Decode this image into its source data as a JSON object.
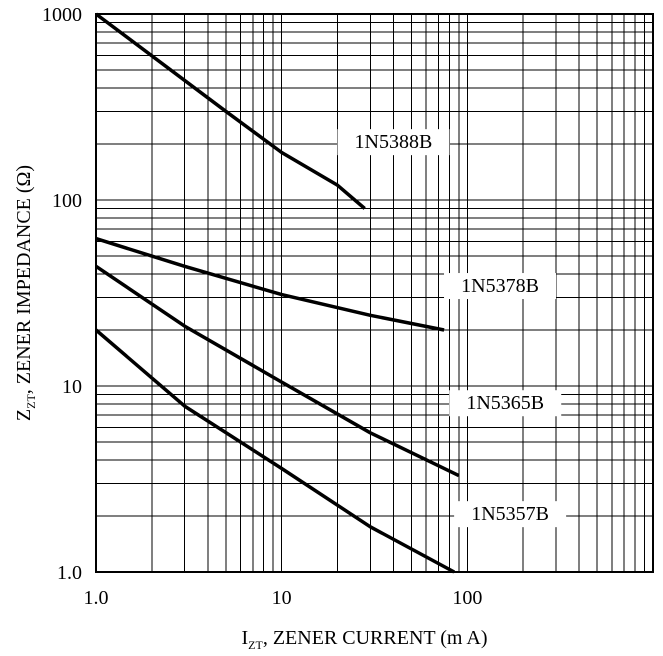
{
  "chart_data": {
    "type": "line",
    "x_scale": "log",
    "y_scale": "log",
    "xlim": [
      1,
      1000
    ],
    "ylim": [
      1,
      1000
    ],
    "grid": true,
    "xlabel": {
      "main": "I",
      "sub": "ZT",
      "rest": ", ZENER CURRENT (m A)"
    },
    "ylabel": {
      "main": "Z",
      "sub": "ZT",
      "rest": ", ZENER IMPEDANCE (Ω)"
    },
    "x_ticks": [
      {
        "value": 1,
        "label": "1.0"
      },
      {
        "value": 10,
        "label": "10"
      },
      {
        "value": 100,
        "label": "100"
      }
    ],
    "y_ticks": [
      {
        "value": 1,
        "label": "1.0"
      },
      {
        "value": 10,
        "label": "10"
      },
      {
        "value": 100,
        "label": "100"
      },
      {
        "value": 1000,
        "label": "1000"
      }
    ],
    "series": [
      {
        "name": "1N5388B",
        "points": [
          [
            1,
            1000
          ],
          [
            5,
            300
          ],
          [
            10,
            180
          ],
          [
            20,
            120
          ],
          [
            28,
            90
          ]
        ],
        "label_at": [
          40,
          190
        ]
      },
      {
        "name": "1N5378B",
        "points": [
          [
            1,
            62
          ],
          [
            3,
            44
          ],
          [
            10,
            31
          ],
          [
            30,
            24
          ],
          [
            75,
            20
          ]
        ],
        "label_at": [
          150,
          32
        ]
      },
      {
        "name": "1N5365B",
        "points": [
          [
            1,
            44
          ],
          [
            3,
            21
          ],
          [
            10,
            10.5
          ],
          [
            30,
            5.6
          ],
          [
            90,
            3.3
          ]
        ],
        "label_at": [
          160,
          7.5
        ]
      },
      {
        "name": "1N5357B",
        "points": [
          [
            1,
            20
          ],
          [
            3,
            7.8
          ],
          [
            10,
            3.6
          ],
          [
            30,
            1.75
          ],
          [
            85,
            1.0
          ]
        ],
        "label_at": [
          170,
          1.9
        ]
      }
    ]
  }
}
